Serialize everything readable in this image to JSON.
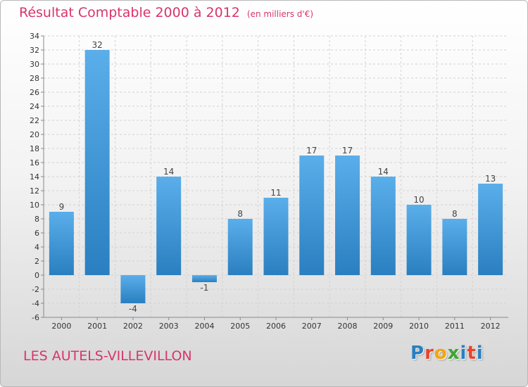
{
  "header": {
    "title": "Résultat Comptable 2000 à 2012",
    "subtitle": "(en milliers d'€)"
  },
  "footer": {
    "commune": "LES AUTELS-VILLEVILLON",
    "logo": "Proxiti"
  },
  "colors": {
    "title": "#d8356a",
    "bar_light": "#5aaeea",
    "bar_dark": "#2a7fc0",
    "grid": "#d2d2d2",
    "axis_text": "#333333",
    "logo_letters": [
      "#2a7fc0",
      "#e8442e",
      "#f3a50f",
      "#3fa535",
      "#2a7fc0",
      "#e8442e",
      "#2a7fc0"
    ]
  },
  "chart_data": {
    "type": "bar",
    "title": "Résultat Comptable 2000 à 2012",
    "xlabel": "",
    "ylabel": "",
    "unit": "milliers d'€",
    "categories": [
      "2000",
      "2001",
      "2002",
      "2003",
      "2004",
      "2005",
      "2006",
      "2007",
      "2008",
      "2009",
      "2010",
      "2011",
      "2012"
    ],
    "values": [
      9,
      32,
      -4,
      14,
      -1,
      8,
      11,
      17,
      17,
      14,
      10,
      8,
      13
    ],
    "data_labels": [
      "9",
      "32",
      "-4",
      "14",
      "-1",
      "8",
      "11",
      "17",
      "17",
      "14",
      "10",
      "8",
      "13"
    ],
    "ylim": [
      -6,
      34
    ],
    "yticks": [
      -6,
      -4,
      -2,
      0,
      2,
      4,
      6,
      8,
      10,
      12,
      14,
      16,
      18,
      20,
      22,
      24,
      26,
      28,
      30,
      32,
      34
    ],
    "ytick_labels": [
      "-6",
      "-4",
      "-2",
      "0",
      "2",
      "4",
      "6",
      "8",
      "10",
      "12",
      "14",
      "16",
      "18",
      "20",
      "22",
      "24",
      "26",
      "28",
      "30",
      "32",
      "34"
    ],
    "grid": true
  }
}
